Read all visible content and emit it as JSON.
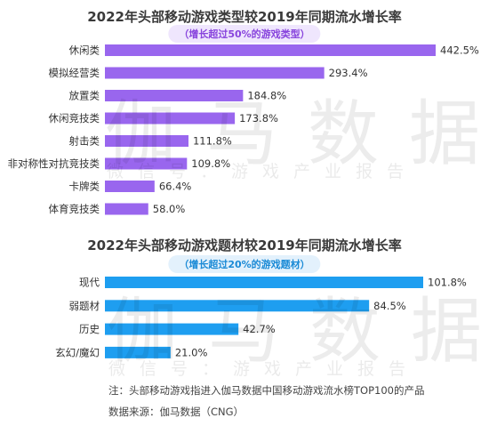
{
  "chart_data": [
    {
      "type": "bar",
      "orientation": "horizontal",
      "title": "2022年头部移动游戏类型较2019年同期流水增长率",
      "subtitle": "（增长超过50%的游戏类型）",
      "categories": [
        "休闲类",
        "模拟经营类",
        "放置类",
        "休闲竞技类",
        "射击类",
        "非对称性对抗竞技类",
        "卡牌类",
        "体育竞技类"
      ],
      "values": [
        442.5,
        293.4,
        184.8,
        173.8,
        111.8,
        109.8,
        66.4,
        58.0
      ],
      "labels": [
        "442.5%",
        "293.4%",
        "184.8%",
        "173.8%",
        "111.8%",
        "109.8%",
        "66.4%",
        "58.0%"
      ],
      "color": "#9966ee",
      "subtitle_color": "#8844dd"
    },
    {
      "type": "bar",
      "orientation": "horizontal",
      "title": "2022年头部移动游戏题材较2019年同期流水增长率",
      "subtitle": "（增长超过20%的游戏题材）",
      "categories": [
        "现代",
        "弱题材",
        "历史",
        "玄幻/魔幻"
      ],
      "values": [
        101.8,
        84.5,
        42.7,
        21.0
      ],
      "labels": [
        "101.8%",
        "84.5%",
        "42.7%",
        "21.0%"
      ],
      "color": "#1e9ef0",
      "subtitle_color": "#1a8ad6"
    }
  ],
  "watermark": {
    "main": "伽马数据",
    "sub": "微信号：游戏产业报告"
  },
  "notes": {
    "note": "注：头部移动游戏指进入伽马数据中国移动游戏流水榜TOP100的产品",
    "source": "数据来源：伽马数据（CNG）"
  }
}
